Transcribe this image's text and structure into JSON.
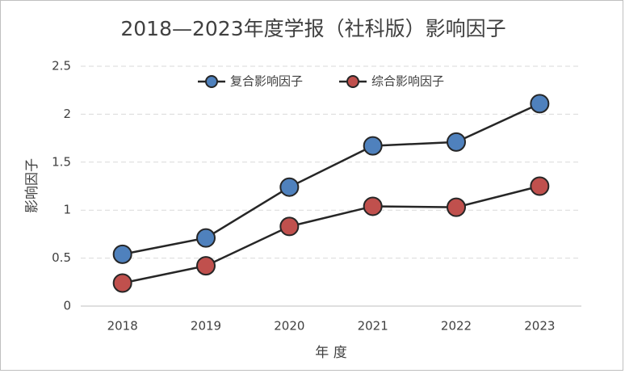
{
  "chart_data": {
    "type": "line",
    "title": "2018—2023年度学报（社科版）影响因子",
    "x_label": "年 度",
    "y_label": "影响因子",
    "categories": [
      "2018",
      "2019",
      "2020",
      "2021",
      "2022",
      "2023"
    ],
    "series": [
      {
        "name": "复合影响因子",
        "color": "#4f81bd",
        "values": [
          0.54,
          0.71,
          1.24,
          1.67,
          1.71,
          2.11
        ]
      },
      {
        "name": "综合影响因子",
        "color": "#c0504d",
        "values": [
          0.24,
          0.42,
          0.83,
          1.04,
          1.03,
          1.25
        ]
      }
    ],
    "ylim": [
      0,
      2.5
    ],
    "yticks": [
      0,
      0.5,
      1,
      1.5,
      2,
      2.5
    ],
    "grid": true,
    "legend": "top"
  }
}
